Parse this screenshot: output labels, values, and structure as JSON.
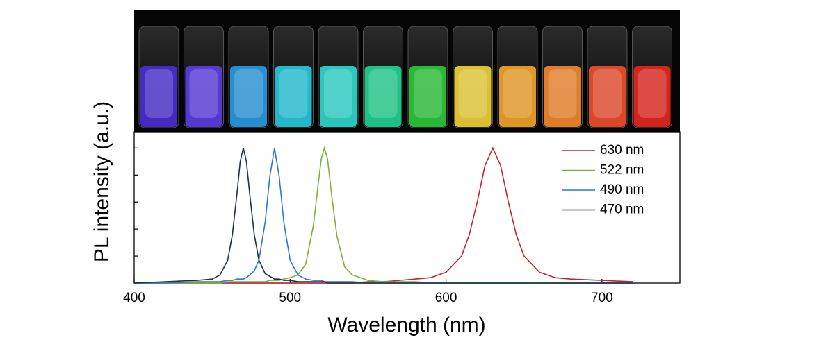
{
  "chart_data": {
    "type": "line",
    "xlabel": "Wavelength (nm)",
    "ylabel": "PL intensity (a.u.)",
    "xlim": [
      400,
      750
    ],
    "xticks": [
      400,
      500,
      600,
      700
    ],
    "ylim": [
      0,
      1.12
    ],
    "yticks": [
      0,
      0.2,
      0.4,
      0.6,
      0.8,
      1
    ],
    "x": [
      400,
      420,
      440,
      450,
      455,
      460,
      463,
      466,
      468,
      470,
      472,
      474,
      477,
      480,
      484,
      487,
      490,
      493,
      496,
      500,
      505,
      510,
      515,
      518,
      520,
      522,
      524,
      527,
      530,
      535,
      540,
      550,
      560,
      570,
      580,
      590,
      600,
      610,
      615,
      620,
      625,
      630,
      635,
      640,
      645,
      650,
      660,
      670,
      680,
      700,
      720
    ],
    "series": [
      {
        "name": "630 nm",
        "color": "#c0262d",
        "values": [
          0,
          0,
          0,
          0,
          0,
          0,
          0,
          0,
          0,
          0,
          0,
          0,
          0,
          0,
          0,
          0,
          0,
          0,
          0,
          0,
          0,
          0,
          0,
          0,
          0,
          0,
          0,
          0,
          0,
          0,
          0,
          0.01,
          0.01,
          0.02,
          0.03,
          0.04,
          0.08,
          0.2,
          0.36,
          0.6,
          0.87,
          1,
          0.87,
          0.6,
          0.36,
          0.2,
          0.08,
          0.04,
          0.03,
          0.02,
          0.01
        ]
      },
      {
        "name": "522 nm",
        "color": "#7cb034",
        "values": [
          0,
          0,
          0,
          0,
          0,
          0.01,
          0.01,
          0.01,
          0.01,
          0.01,
          0.01,
          0.01,
          0.01,
          0.01,
          0.01,
          0.02,
          0.02,
          0.02,
          0.03,
          0.04,
          0.06,
          0.14,
          0.43,
          0.73,
          0.92,
          1,
          0.92,
          0.62,
          0.35,
          0.12,
          0.06,
          0.02,
          0.01,
          0.01,
          0.01,
          0,
          0,
          0,
          0,
          0,
          0,
          0,
          0,
          0,
          0,
          0,
          0,
          0,
          0,
          0,
          0
        ]
      },
      {
        "name": "490 nm",
        "color": "#2a78cf",
        "values": [
          0,
          0,
          0.01,
          0.01,
          0.01,
          0.02,
          0.02,
          0.03,
          0.03,
          0.03,
          0.04,
          0.06,
          0.09,
          0.17,
          0.45,
          0.79,
          1,
          0.79,
          0.45,
          0.17,
          0.06,
          0.03,
          0.02,
          0.02,
          0.02,
          0.01,
          0.01,
          0.01,
          0.01,
          0.01,
          0.01,
          0,
          0,
          0,
          0,
          0,
          0,
          0,
          0,
          0,
          0,
          0,
          0,
          0,
          0,
          0,
          0,
          0,
          0,
          0,
          0
        ]
      },
      {
        "name": "470 nm",
        "color": "#1c2f44",
        "values": [
          0,
          0.01,
          0.02,
          0.03,
          0.06,
          0.17,
          0.36,
          0.67,
          0.9,
          1,
          0.9,
          0.67,
          0.36,
          0.17,
          0.07,
          0.05,
          0.03,
          0.03,
          0.02,
          0.02,
          0.01,
          0.01,
          0.01,
          0.01,
          0.01,
          0.01,
          0,
          0,
          0,
          0,
          0,
          0,
          0,
          0,
          0,
          0,
          0,
          0,
          0,
          0,
          0,
          0,
          0,
          0,
          0,
          0,
          0,
          0,
          0,
          0,
          0
        ]
      }
    ]
  }
}
